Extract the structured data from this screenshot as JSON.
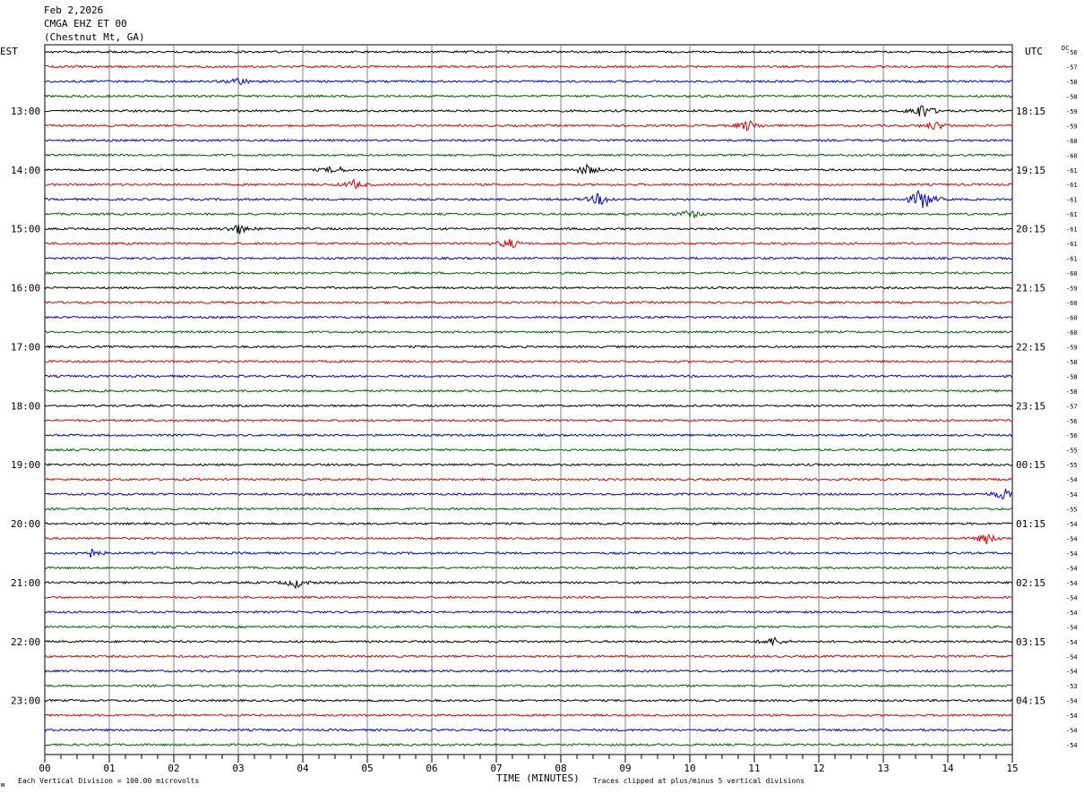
{
  "header": {
    "date": "Feb 2,2026",
    "station": "CMGA EHZ ET 00",
    "location": "(Chestnut Mt, GA)"
  },
  "left_axis_label": "EST",
  "right_axis_label": "UTC",
  "dc_label": "DC",
  "footer": {
    "scale_text": "Each Vertical Division =  100.00 microvolts",
    "xlabel": "TIME (MINUTES)",
    "clip_text": "Traces clipped at plus/minus 5 vertical divisions",
    "corner_mark": "ᴍ"
  },
  "colors": {
    "trace_cycle": [
      "#000000",
      "#e00000",
      "#0000e0",
      "#006000"
    ],
    "grid": "#808080",
    "text": "#000000"
  },
  "chart_data": {
    "type": "line",
    "xlim": [
      0,
      15
    ],
    "x_ticks": [
      "00",
      "01",
      "02",
      "03",
      "04",
      "05",
      "06",
      "07",
      "08",
      "09",
      "10",
      "11",
      "12",
      "13",
      "14",
      "15"
    ],
    "trace_count": 48,
    "left_hour_labels": [
      {
        "trace": 4,
        "label": "13:00"
      },
      {
        "trace": 8,
        "label": "14:00"
      },
      {
        "trace": 12,
        "label": "15:00"
      },
      {
        "trace": 16,
        "label": "16:00"
      },
      {
        "trace": 20,
        "label": "17:00"
      },
      {
        "trace": 24,
        "label": "18:00"
      },
      {
        "trace": 28,
        "label": "19:00"
      },
      {
        "trace": 32,
        "label": "20:00"
      },
      {
        "trace": 36,
        "label": "21:00"
      },
      {
        "trace": 40,
        "label": "22:00"
      },
      {
        "trace": 44,
        "label": "23:00"
      }
    ],
    "right_hour_labels": [
      {
        "trace": 4,
        "label": "18:15"
      },
      {
        "trace": 8,
        "label": "19:15"
      },
      {
        "trace": 12,
        "label": "20:15"
      },
      {
        "trace": 16,
        "label": "21:15"
      },
      {
        "trace": 20,
        "label": "22:15"
      },
      {
        "trace": 24,
        "label": "23:15"
      },
      {
        "trace": 28,
        "label": "00:15"
      },
      {
        "trace": 32,
        "label": "01:15"
      },
      {
        "trace": 36,
        "label": "02:15"
      },
      {
        "trace": 40,
        "label": "03:15"
      },
      {
        "trace": 44,
        "label": "04:15"
      }
    ],
    "dc_offsets": [
      "-56",
      "-57",
      "-58",
      "-58",
      "-59",
      "-59",
      "-60",
      "-60",
      "-61",
      "-61",
      "-61",
      "-61",
      "-61",
      "-61",
      "-61",
      "-60",
      "-59",
      "-60",
      "-60",
      "-60",
      "-59",
      "-58",
      "-58",
      "-58",
      "-57",
      "-56",
      "-56",
      "-55",
      "-55",
      "-54",
      "-54",
      "-55",
      "-54",
      "-54",
      "-54",
      "-54",
      "-54",
      "-54",
      "-54",
      "-54",
      "-54",
      "-54",
      "-54",
      "-53",
      "-54",
      "-54",
      "-54",
      "-54"
    ],
    "events": [
      {
        "trace": 2,
        "x": 3.0,
        "amp": 1.5
      },
      {
        "trace": 4,
        "x": 13.6,
        "amp": 3.0
      },
      {
        "trace": 5,
        "x": 10.9,
        "amp": 2.0
      },
      {
        "trace": 5,
        "x": 13.8,
        "amp": 1.6
      },
      {
        "trace": 8,
        "x": 4.5,
        "amp": 1.5
      },
      {
        "trace": 8,
        "x": 8.4,
        "amp": 2.0
      },
      {
        "trace": 9,
        "x": 4.8,
        "amp": 1.6
      },
      {
        "trace": 10,
        "x": 8.6,
        "amp": 2.2
      },
      {
        "trace": 10,
        "x": 13.6,
        "amp": 4.5
      },
      {
        "trace": 11,
        "x": 10.0,
        "amp": 1.6
      },
      {
        "trace": 12,
        "x": 3.0,
        "amp": 1.8
      },
      {
        "trace": 13,
        "x": 7.2,
        "amp": 1.8
      },
      {
        "trace": 30,
        "x": 14.85,
        "amp": 2.0
      },
      {
        "trace": 33,
        "x": 14.6,
        "amp": 1.8
      },
      {
        "trace": 34,
        "x": 0.7,
        "amp": 1.6
      },
      {
        "trace": 36,
        "x": 3.9,
        "amp": 1.8
      },
      {
        "trace": 40,
        "x": 11.3,
        "amp": 1.6
      }
    ]
  }
}
